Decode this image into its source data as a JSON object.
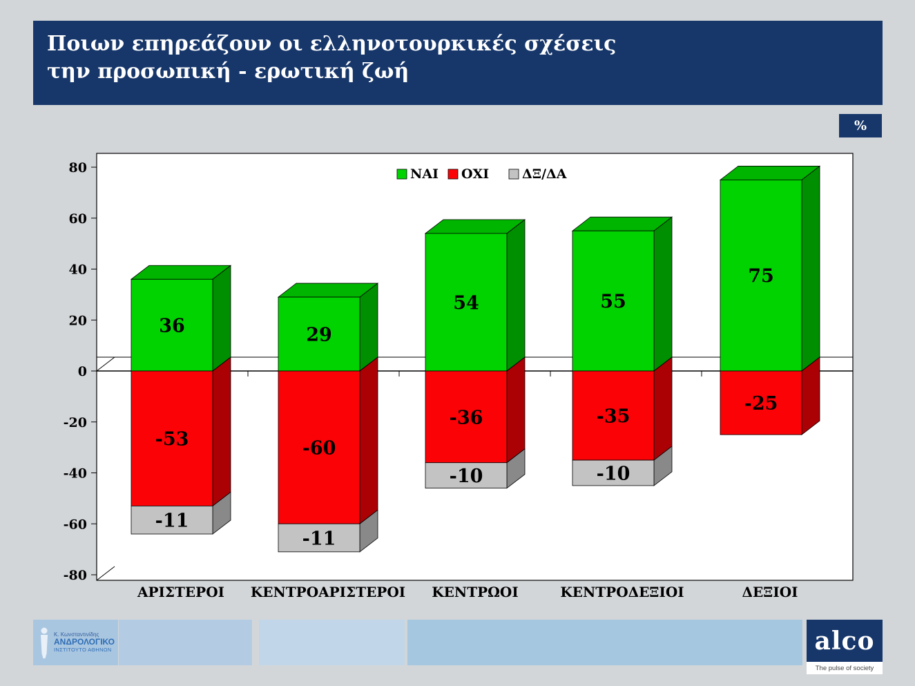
{
  "header": {
    "title_line1": "Ποιων επηρεάζουν οι ελληνοτουρκικές σχέσεις",
    "title_line2": "την προσωπική - ερωτική ζωή"
  },
  "chart_data": {
    "type": "bar",
    "subtype": "3d-stacked-diverging",
    "unit": "%",
    "categories": [
      "ΑΡΙΣΤΕΡΟΙ",
      "ΚΕΝΤΡΟΑΡΙΣΤΕΡΟΙ",
      "ΚΕΝΤΡΩΟΙ",
      "ΚΕΝΤΡΟΔΕΞΙΟΙ",
      "ΔΕΞΙΟΙ"
    ],
    "series": [
      {
        "name": "ΝΑΙ",
        "color": "#00d300",
        "values": [
          36,
          29,
          54,
          55,
          75
        ]
      },
      {
        "name": "ΟΧΙ",
        "color": "#fb0207",
        "values": [
          -53,
          -60,
          -36,
          -35,
          -25
        ]
      },
      {
        "name": "ΔΞ/ΔΑ",
        "color": "#c3c3c3",
        "values": [
          -11,
          -11,
          -10,
          -10,
          0
        ]
      }
    ],
    "ylim": [
      -80,
      80
    ],
    "ytick_step": 20,
    "legend_position": "top-center",
    "grid": "zero-line-only",
    "plot_background": "#ffffff"
  },
  "footer": {
    "institute": {
      "line1": "Κ. Κωνσταντινίδης",
      "line2": "ΑΝΔΡΟΛΟΓΙΚΟ",
      "line3": "ΙΝΣΤΙΤΟΥΤΟ ΑΘΗΝΩΝ"
    },
    "alco": {
      "name": "alco",
      "tagline": "The pulse of society"
    }
  }
}
